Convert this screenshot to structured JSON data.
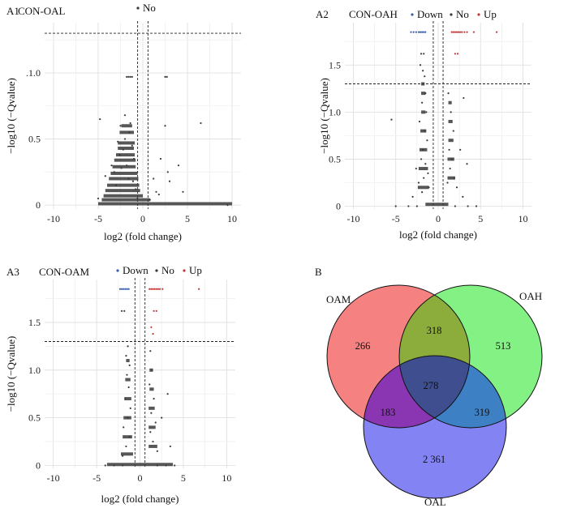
{
  "chart_data": [
    {
      "type": "scatter",
      "panel_label": "A1",
      "title": "CON-OAL",
      "legend": [
        "No"
      ],
      "xlabel": "log2 (fold change)",
      "ylabel": "−log10 (−Qvalue)",
      "xlim": [
        -11,
        11
      ],
      "ylim": [
        -0.03,
        1.38
      ],
      "xticks": [
        -10,
        -5,
        0,
        5,
        10
      ],
      "yticks": [
        0,
        0.5,
        1.0
      ],
      "ytick_labels": [
        "0",
        "0.5",
        ".1.0"
      ],
      "hline": 1.3,
      "vlines": [
        -0.58,
        0.58
      ],
      "series": [
        {
          "name": "No",
          "color": "#3a3a3a",
          "points": [
            [
              -1.8,
              0.97
            ],
            [
              -1.6,
              0.97
            ],
            [
              -1.4,
              0.97
            ],
            [
              -1.2,
              0.97
            ],
            [
              2.5,
              0.97
            ],
            [
              2.7,
              0.97
            ],
            [
              -2.5,
              0.6
            ],
            [
              -2.0,
              0.68
            ],
            [
              -1.5,
              0.55
            ],
            [
              -2.8,
              0.48
            ],
            [
              -1.0,
              0.35
            ],
            [
              -3.5,
              0.3
            ],
            [
              -4.2,
              0.22
            ],
            [
              -1.2,
              0.45
            ],
            [
              -2.2,
              0.42
            ],
            [
              -1.8,
              0.3
            ],
            [
              -3.0,
              0.15
            ],
            [
              -0.8,
              0.12
            ],
            [
              -2.4,
              0.28
            ],
            [
              -1.6,
              0.2
            ],
            [
              -2.0,
              0.5
            ],
            [
              -1.4,
              0.62
            ],
            [
              -2.6,
              0.38
            ],
            [
              -3.2,
              0.25
            ],
            [
              -1.1,
              0.18
            ],
            [
              1.2,
              0.2
            ],
            [
              1.5,
              0.1
            ],
            [
              2.5,
              0.6
            ],
            [
              2.0,
              0.35
            ],
            [
              4.0,
              0.3
            ],
            [
              4.5,
              0.1
            ],
            [
              3.0,
              0.18
            ],
            [
              6.5,
              0.62
            ],
            [
              2.8,
              0.25
            ],
            [
              1.8,
              0.08
            ],
            [
              -4.8,
              0.65
            ],
            [
              -5.0,
              0.05
            ],
            [
              9.5,
              0.0
            ],
            [
              -0.6,
              0.05
            ],
            [
              0.8,
              0.04
            ]
          ]
        },
        {
          "name": "No-bands",
          "color": "#3a3a3a",
          "bands": [
            [
              -2.4,
              -1.2,
              0.6
            ],
            [
              -2.6,
              -1.0,
              0.55
            ],
            [
              -2.8,
              -0.9,
              0.47
            ],
            [
              -2.8,
              -1.0,
              0.43
            ],
            [
              -3.0,
              -0.9,
              0.38
            ],
            [
              -3.2,
              -0.8,
              0.34
            ],
            [
              -3.4,
              -0.8,
              0.29
            ],
            [
              -3.6,
              -0.6,
              0.24
            ],
            [
              -3.8,
              -0.5,
              0.2
            ],
            [
              -4.0,
              -0.4,
              0.15
            ],
            [
              -4.2,
              -0.3,
              0.11
            ],
            [
              -4.4,
              0.0,
              0.07
            ],
            [
              -4.6,
              0.8,
              0.04
            ],
            [
              -5.0,
              10.0,
              0.01
            ]
          ]
        }
      ]
    },
    {
      "type": "scatter",
      "panel_label": "A2",
      "title": "CON-OAH",
      "legend": [
        "Down",
        "No",
        "Up"
      ],
      "xlabel": "log2 (fold change)",
      "ylabel": "−log10 (−Qvalue)",
      "xlim": [
        -11,
        11
      ],
      "ylim": [
        -0.03,
        1.95
      ],
      "xticks": [
        -10,
        -5,
        0,
        5,
        10
      ],
      "yticks": [
        0,
        0.5,
        1.0,
        1.5
      ],
      "ytick_labels": [
        "0",
        "0.5",
        "1.0",
        "1.5"
      ],
      "hline": 1.3,
      "vlines": [
        -0.58,
        0.58
      ],
      "series": [
        {
          "name": "Down",
          "color": "#3a5fa8",
          "points": [
            [
              -3.2,
              1.85
            ],
            [
              -2.9,
              1.85
            ],
            [
              -2.6,
              1.85
            ],
            [
              -2.3,
              1.85
            ],
            [
              -2.1,
              1.85
            ],
            [
              -1.9,
              1.85
            ],
            [
              -1.7,
              1.85
            ],
            [
              -1.5,
              1.85
            ]
          ]
        },
        {
          "name": "Up",
          "color": "#c03a3a",
          "points": [
            [
              1.6,
              1.85
            ],
            [
              1.8,
              1.85
            ],
            [
              2.0,
              1.85
            ],
            [
              2.2,
              1.85
            ],
            [
              2.4,
              1.85
            ],
            [
              2.6,
              1.85
            ],
            [
              2.8,
              1.85
            ],
            [
              3.1,
              1.85
            ],
            [
              3.4,
              1.85
            ],
            [
              4.2,
              1.85
            ],
            [
              6.9,
              1.85
            ],
            [
              2.0,
              1.62
            ],
            [
              2.3,
              1.62
            ]
          ]
        },
        {
          "name": "No",
          "color": "#3a3a3a",
          "points": [
            [
              -2.0,
              1.62
            ],
            [
              -1.7,
              1.62
            ],
            [
              -2.1,
              1.5
            ],
            [
              -1.8,
              1.44
            ],
            [
              -1.6,
              1.38
            ],
            [
              -1.5,
              1.2
            ],
            [
              -1.9,
              1.1
            ],
            [
              -1.4,
              1.0
            ],
            [
              -2.2,
              0.9
            ],
            [
              -1.6,
              0.8
            ],
            [
              -1.3,
              0.7
            ],
            [
              -1.8,
              0.6
            ],
            [
              -2.0,
              0.5
            ],
            [
              -1.5,
              0.45
            ],
            [
              -1.2,
              0.35
            ],
            [
              -1.7,
              0.3
            ],
            [
              -2.3,
              0.25
            ],
            [
              -1.1,
              0.2
            ],
            [
              -1.9,
              0.15
            ],
            [
              -5.5,
              0.92
            ],
            [
              -2.6,
              0.4
            ],
            [
              -3.0,
              0.1
            ],
            [
              1.2,
              1.2
            ],
            [
              1.5,
              1.0
            ],
            [
              1.8,
              0.8
            ],
            [
              1.3,
              0.6
            ],
            [
              1.6,
              0.5
            ],
            [
              1.4,
              0.4
            ],
            [
              1.9,
              0.3
            ],
            [
              1.1,
              0.25
            ],
            [
              2.2,
              0.2
            ],
            [
              3.0,
              1.15
            ],
            [
              3.4,
              0.45
            ],
            [
              2.6,
              0.6
            ],
            [
              2.9,
              0.1
            ],
            [
              -5.0,
              0.0
            ],
            [
              -3.5,
              0.0
            ],
            [
              -2.5,
              0.0
            ],
            [
              3.5,
              0.0
            ],
            [
              4.5,
              0.0
            ],
            [
              2.0,
              0.0
            ]
          ]
        },
        {
          "name": "No-bands",
          "color": "#3a3a3a",
          "bands": [
            [
              -2.0,
              -1.6,
              1.3
            ],
            [
              -2.0,
              -1.5,
              1.2
            ],
            [
              -2.0,
              -1.5,
              1.0
            ],
            [
              -2.1,
              -1.4,
              0.8
            ],
            [
              -2.2,
              -1.3,
              0.6
            ],
            [
              -2.3,
              -1.2,
              0.4
            ],
            [
              -2.4,
              -1.1,
              0.2
            ],
            [
              1.2,
              1.6,
              1.1
            ],
            [
              1.2,
              1.7,
              0.9
            ],
            [
              1.2,
              1.8,
              0.7
            ],
            [
              1.1,
              1.9,
              0.5
            ],
            [
              1.1,
              2.0,
              0.3
            ],
            [
              -1.5,
              1.2,
              0.02
            ]
          ]
        }
      ]
    },
    {
      "type": "scatter",
      "panel_label": "A3",
      "title": "CON-OAM",
      "legend": [
        "Down",
        "No",
        "Up"
      ],
      "xlabel": "log2 (fold change)",
      "ylabel": "−log10 (−Qvalue)",
      "xlim": [
        -11,
        11
      ],
      "ylim": [
        -0.03,
        1.95
      ],
      "xticks": [
        -10,
        -5,
        0,
        5,
        10
      ],
      "yticks": [
        0,
        0.5,
        1.0,
        1.5
      ],
      "ytick_labels": [
        "0",
        "0.5",
        "1.0",
        "1.5"
      ],
      "hline": 1.3,
      "vlines": [
        -0.58,
        0.58
      ],
      "series": [
        {
          "name": "Down",
          "color": "#3a5fa8",
          "points": [
            [
              -2.3,
              1.85
            ],
            [
              -2.1,
              1.85
            ],
            [
              -1.9,
              1.85
            ],
            [
              -1.7,
              1.85
            ],
            [
              -1.5,
              1.85
            ],
            [
              -1.3,
              1.85
            ]
          ]
        },
        {
          "name": "Up",
          "color": "#c03a3a",
          "points": [
            [
              1.1,
              1.85
            ],
            [
              1.3,
              1.85
            ],
            [
              1.5,
              1.85
            ],
            [
              1.7,
              1.85
            ],
            [
              1.9,
              1.85
            ],
            [
              2.1,
              1.85
            ],
            [
              2.3,
              1.85
            ],
            [
              2.6,
              1.85
            ],
            [
              6.8,
              1.85
            ],
            [
              1.6,
              1.62
            ],
            [
              1.9,
              1.62
            ],
            [
              1.3,
              1.45
            ],
            [
              1.5,
              1.38
            ]
          ]
        },
        {
          "name": "No",
          "color": "#3a3a3a",
          "points": [
            [
              -2.1,
              1.62
            ],
            [
              -1.8,
              1.62
            ],
            [
              -1.4,
              1.25
            ],
            [
              -1.6,
              1.15
            ],
            [
              -1.2,
              1.05
            ],
            [
              -1.5,
              0.95
            ],
            [
              -1.3,
              0.82
            ],
            [
              -1.7,
              0.7
            ],
            [
              -1.1,
              0.6
            ],
            [
              -1.4,
              0.5
            ],
            [
              -1.9,
              0.4
            ],
            [
              -1.2,
              0.3
            ],
            [
              -1.6,
              0.2
            ],
            [
              -2.0,
              0.1
            ],
            [
              1.2,
              1.2
            ],
            [
              1.4,
              1.0
            ],
            [
              1.1,
              0.85
            ],
            [
              1.6,
              0.7
            ],
            [
              1.3,
              0.55
            ],
            [
              1.8,
              0.45
            ],
            [
              1.2,
              0.35
            ],
            [
              1.5,
              0.25
            ],
            [
              2.0,
              0.15
            ],
            [
              3.2,
              0.75
            ],
            [
              3.5,
              0.2
            ],
            [
              2.5,
              0.5
            ],
            [
              -4.0,
              0.0
            ],
            [
              -3.0,
              0.0
            ],
            [
              -2.0,
              0.0
            ],
            [
              2.0,
              0.0
            ],
            [
              3.0,
              0.0
            ],
            [
              4.0,
              0.0
            ]
          ]
        },
        {
          "name": "No-bands",
          "color": "#3a3a3a",
          "bands": [
            [
              -1.6,
              -1.2,
              1.1
            ],
            [
              -1.7,
              -1.1,
              0.9
            ],
            [
              -1.8,
              -1.0,
              0.7
            ],
            [
              -1.9,
              -1.0,
              0.5
            ],
            [
              -2.0,
              -0.9,
              0.3
            ],
            [
              -2.2,
              -0.8,
              0.12
            ],
            [
              1.1,
              1.5,
              1.0
            ],
            [
              1.1,
              1.6,
              0.8
            ],
            [
              1.0,
              1.7,
              0.6
            ],
            [
              1.0,
              1.8,
              0.4
            ],
            [
              1.0,
              2.0,
              0.2
            ],
            [
              -3.8,
              3.8,
              0.01
            ]
          ]
        }
      ]
    },
    {
      "type": "venn",
      "panel_label": "B",
      "sets": [
        {
          "name": "OAM",
          "color": "#f47a7a"
        },
        {
          "name": "OAH",
          "color": "#7cf07c"
        },
        {
          "name": "OAL",
          "color": "#7c7cf2"
        }
      ],
      "regions": {
        "OAM_only": "266",
        "OAH_only": "513",
        "OAL_only": "2 361",
        "OAM_OAH": "318",
        "OAM_OAL": "183",
        "OAH_OAL": "319",
        "all": "278"
      }
    }
  ]
}
